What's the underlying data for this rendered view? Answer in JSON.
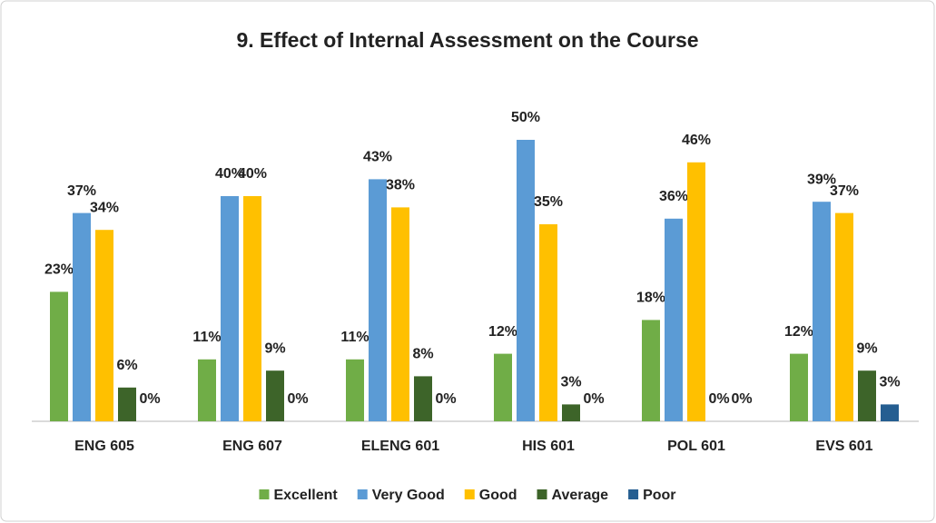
{
  "chart_data": {
    "type": "bar",
    "title": "9. Effect of Internal Assessment on the Course",
    "categories": [
      "ENG 605",
      "ENG 607",
      "ELENG 601",
      "HIS 601",
      "POL 601",
      "EVS 601"
    ],
    "series": [
      {
        "name": "Excellent",
        "color": "#70ad47",
        "values": [
          23,
          11,
          11,
          12,
          18,
          12
        ],
        "value_labels": [
          "23%",
          "11%",
          "11%",
          "12%",
          "18%",
          "12%"
        ]
      },
      {
        "name": "Very Good",
        "color": "#5b9bd5",
        "values": [
          37,
          40,
          43,
          50,
          36,
          39
        ],
        "value_labels": [
          "37%",
          "40%",
          "43%",
          "50%",
          "36%",
          "39%"
        ]
      },
      {
        "name": "Good",
        "color": "#ffc000",
        "values": [
          34,
          40,
          38,
          35,
          46,
          37
        ],
        "value_labels": [
          "34%",
          "40%",
          "38%",
          "35%",
          "46%",
          "37%"
        ]
      },
      {
        "name": "Average",
        "color": "#3d6429",
        "values": [
          6,
          9,
          8,
          3,
          0,
          9
        ],
        "value_labels": [
          "6%",
          "9%",
          "8%",
          "3%",
          "0%",
          "9%"
        ]
      },
      {
        "name": "Poor",
        "color": "#255e91",
        "values": [
          0,
          0,
          0,
          0,
          0,
          3
        ],
        "value_labels": [
          "0%",
          "0%",
          "0%",
          "0%",
          "0%",
          "3%"
        ]
      }
    ],
    "legend": "bottom"
  }
}
